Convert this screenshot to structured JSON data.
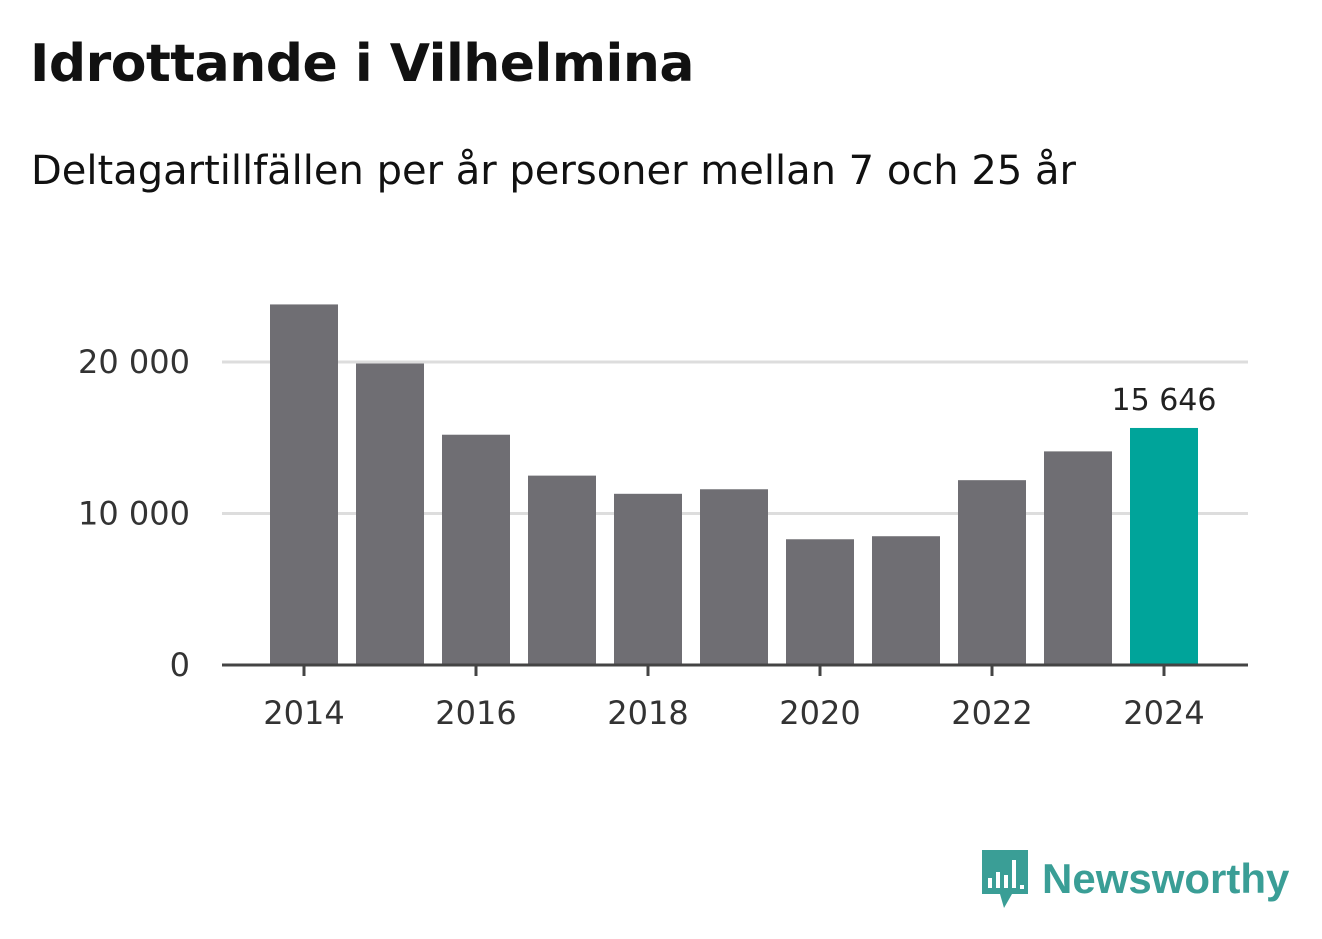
{
  "title": "Idrottande i Vilhelmina",
  "subtitle": "Deltagartillfällen per år personer mellan 7 och 25 år",
  "chart_data": {
    "type": "bar",
    "title": "Idrottande i Vilhelmina",
    "subtitle": "Deltagartillfällen per år personer mellan 7 och 25 år",
    "xlabel": "",
    "ylabel": "",
    "categories": [
      "2014",
      "2015",
      "2016",
      "2017",
      "2018",
      "2019",
      "2020",
      "2021",
      "2022",
      "2023",
      "2024"
    ],
    "values": [
      23800,
      19900,
      15200,
      12500,
      11300,
      11600,
      8300,
      8500,
      12200,
      14100,
      15646
    ],
    "ylim": [
      0,
      24000
    ],
    "yticks": [
      0,
      10000,
      20000
    ],
    "ytick_labels": [
      "0",
      "10 000",
      "20 000"
    ],
    "xticks": [
      "2014",
      "2016",
      "2018",
      "2020",
      "2022",
      "2024"
    ],
    "highlight_index": 10,
    "highlight_label": "15 646",
    "colors": {
      "bar": "#6f6e73",
      "highlight": "#00a49a",
      "grid": "#dddddd",
      "axis": "#444444"
    },
    "grid": true
  },
  "logo": {
    "text": "Newsworthy",
    "icon": "newsworthy-bar-chart-icon",
    "color": "#3a9e96"
  }
}
